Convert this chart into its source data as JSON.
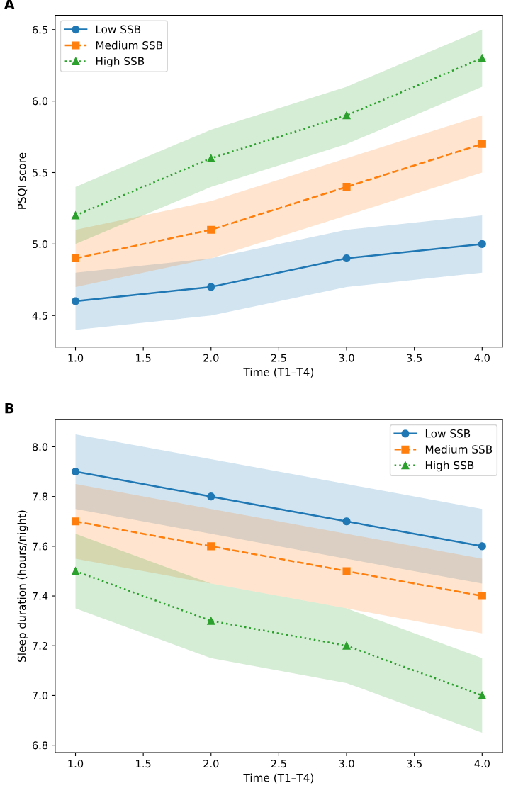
{
  "chart_data": [
    {
      "type": "line",
      "title": "A",
      "xlabel": "Time (T1–T4)",
      "ylabel": "PSQI score",
      "x": [
        1,
        2,
        3,
        4
      ],
      "xlim": [
        0.85,
        4.15
      ],
      "xticks": [
        {
          "value": 1,
          "label": "1.0"
        },
        {
          "value": 1.5,
          "label": "1.5"
        },
        {
          "value": 2,
          "label": "2.0"
        },
        {
          "value": 2.5,
          "label": "2.5"
        },
        {
          "value": 3,
          "label": "3.0"
        },
        {
          "value": 3.5,
          "label": "3.5"
        },
        {
          "value": 4,
          "label": "4.0"
        }
      ],
      "ylim": [
        4.28,
        6.6
      ],
      "yticks": [
        4.5,
        {
          "value": 5,
          "label": "5.0"
        },
        5.5,
        {
          "value": 6,
          "label": "6.0"
        },
        6.5
      ],
      "grid": false,
      "legend": "top left",
      "series": [
        {
          "name": "Low SSB",
          "color": "#1f77b4",
          "marker": "circle",
          "line_style": "solid",
          "values": [
            4.6,
            4.7,
            4.9,
            5.0
          ],
          "lower": [
            4.4,
            4.5,
            4.7,
            4.8
          ],
          "upper": [
            4.8,
            4.9,
            5.1,
            5.2
          ]
        },
        {
          "name": "Medium SSB",
          "color": "#ff7f0e",
          "marker": "square",
          "line_style": "dashed",
          "values": [
            4.9,
            5.1,
            5.4,
            5.7
          ],
          "lower": [
            4.7,
            4.9,
            5.2,
            5.5
          ],
          "upper": [
            5.1,
            5.3,
            5.6,
            5.9
          ]
        },
        {
          "name": "High SSB",
          "color": "#2ca02c",
          "marker": "triangle",
          "line_style": "dotted",
          "values": [
            5.2,
            5.6,
            5.9,
            6.3
          ],
          "lower": [
            5.0,
            5.4,
            5.7,
            6.1
          ],
          "upper": [
            5.4,
            5.8,
            6.1,
            6.5
          ]
        }
      ]
    },
    {
      "type": "line",
      "title": "B",
      "xlabel": "Time (T1–T4)",
      "ylabel": "Sleep duration (hours/night)",
      "x": [
        1,
        2,
        3,
        4
      ],
      "xlim": [
        0.85,
        4.15
      ],
      "xticks": [
        {
          "value": 1,
          "label": "1.0"
        },
        {
          "value": 1.5,
          "label": "1.5"
        },
        {
          "value": 2,
          "label": "2.0"
        },
        {
          "value": 2.5,
          "label": "2.5"
        },
        {
          "value": 3,
          "label": "3.0"
        },
        {
          "value": 3.5,
          "label": "3.5"
        },
        {
          "value": 4,
          "label": "4.0"
        }
      ],
      "ylim": [
        6.77,
        8.11
      ],
      "yticks": [
        6.8,
        {
          "value": 7,
          "label": "7.0"
        },
        7.2,
        7.4,
        7.6,
        7.8,
        {
          "value": 8,
          "label": "8.0"
        }
      ],
      "grid": false,
      "legend": "top right",
      "series": [
        {
          "name": "Low SSB",
          "color": "#1f77b4",
          "marker": "circle",
          "line_style": "solid",
          "values": [
            7.9,
            7.8,
            7.7,
            7.6
          ],
          "lower": [
            7.75,
            7.65,
            7.55,
            7.45
          ],
          "upper": [
            8.05,
            7.95,
            7.85,
            7.75
          ]
        },
        {
          "name": "Medium SSB",
          "color": "#ff7f0e",
          "marker": "square",
          "line_style": "dashed",
          "values": [
            7.7,
            7.6,
            7.5,
            7.4
          ],
          "lower": [
            7.55,
            7.45,
            7.35,
            7.25
          ],
          "upper": [
            7.85,
            7.75,
            7.65,
            7.55
          ]
        },
        {
          "name": "High SSB",
          "color": "#2ca02c",
          "marker": "triangle",
          "line_style": "dotted",
          "values": [
            7.5,
            7.3,
            7.2,
            7.0
          ],
          "lower": [
            7.35,
            7.15,
            7.05,
            6.85
          ],
          "upper": [
            7.65,
            7.45,
            7.35,
            7.15
          ]
        }
      ]
    }
  ]
}
